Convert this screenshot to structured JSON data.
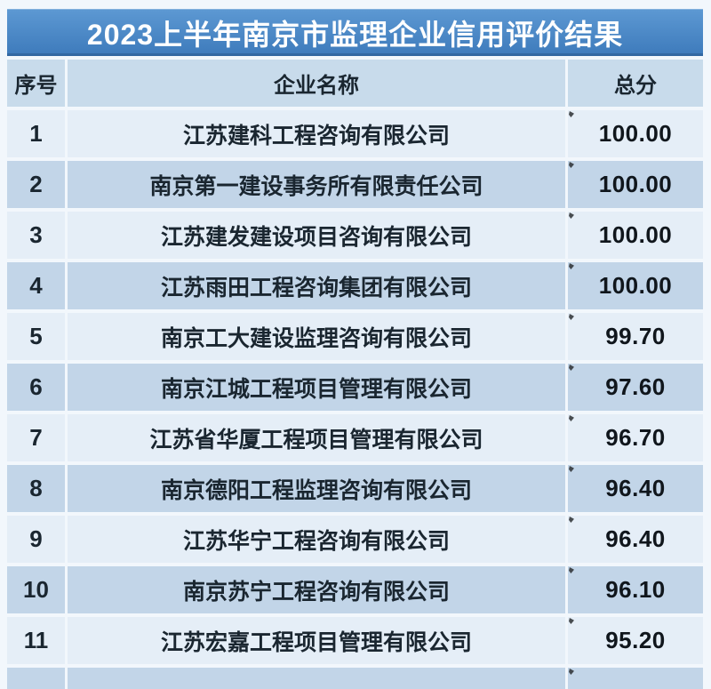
{
  "colors": {
    "page_bg": "#f2f7fc",
    "title_bar_top": "#5d99d3",
    "title_bar_bottom": "#3d7abb",
    "header_row": "#c8dbeb",
    "row_light": "#e5eef7",
    "row_dark": "#c2d5e8",
    "text_dark": "#1a2630"
  },
  "chart_data": {
    "type": "table",
    "title": "2023上半年南京市监理企业信用评价结果",
    "columns": [
      "序号",
      "企业名称",
      "总分"
    ],
    "rows": [
      {
        "index": "1",
        "name": "江苏建科工程咨询有限公司",
        "score": "100.00"
      },
      {
        "index": "2",
        "name": "南京第一建设事务所有限责任公司",
        "score": "100.00"
      },
      {
        "index": "3",
        "name": "江苏建发建设项目咨询有限公司",
        "score": "100.00"
      },
      {
        "index": "4",
        "name": "江苏雨田工程咨询集团有限公司",
        "score": "100.00"
      },
      {
        "index": "5",
        "name": "南京工大建设监理咨询有限公司",
        "score": "99.70"
      },
      {
        "index": "6",
        "name": "南京江城工程项目管理有限公司",
        "score": "97.60"
      },
      {
        "index": "7",
        "name": "江苏省华厦工程项目管理有限公司",
        "score": "96.70"
      },
      {
        "index": "8",
        "name": "南京德阳工程监理咨询有限公司",
        "score": "96.40"
      },
      {
        "index": "9",
        "name": "江苏华宁工程咨询有限公司",
        "score": "96.40"
      },
      {
        "index": "10",
        "name": "南京苏宁工程咨询有限公司",
        "score": "96.10"
      },
      {
        "index": "11",
        "name": "江苏宏嘉工程项目管理有限公司",
        "score": "95.20"
      }
    ],
    "layout": {
      "zebra_striping": true,
      "has_partial_next_row": true,
      "legend": "none",
      "grid": "white cell gaps"
    }
  }
}
